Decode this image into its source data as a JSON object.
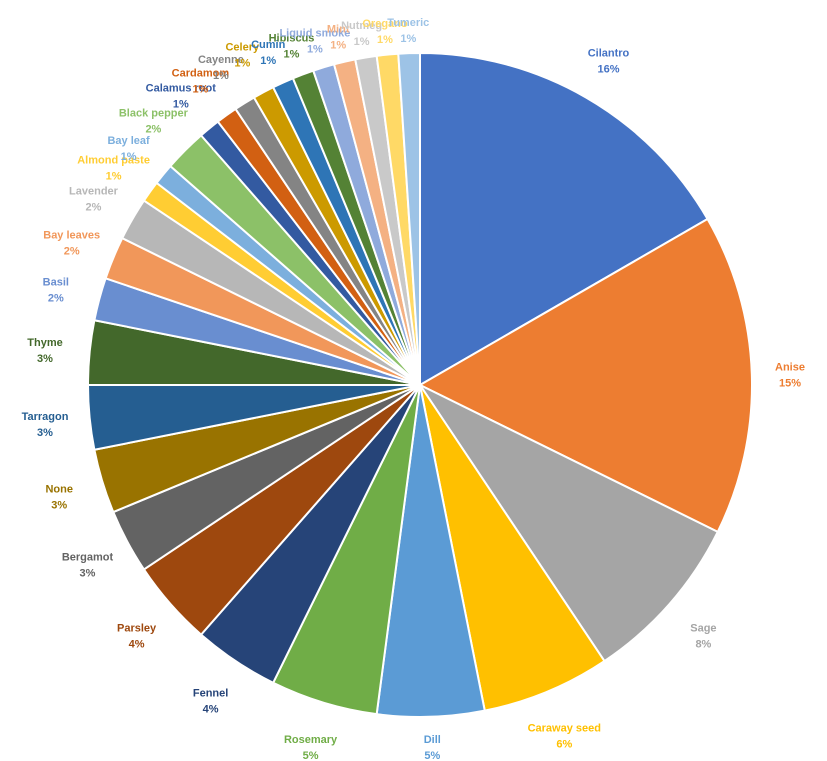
{
  "chart_data": {
    "type": "pie",
    "title": "",
    "start_angle_deg": 0,
    "direction": "clockwise",
    "legend": "none",
    "label_format": "name and percent",
    "slices": [
      {
        "label": "Cilantro",
        "value": 16,
        "display": "16%",
        "color": "#4472C4"
      },
      {
        "label": "Anise",
        "value": 15,
        "display": "15%",
        "color": "#ED7D31"
      },
      {
        "label": "Sage",
        "value": 8,
        "display": "8%",
        "color": "#A5A5A5"
      },
      {
        "label": "Caraway seed",
        "value": 6,
        "display": "6%",
        "color": "#FFC000"
      },
      {
        "label": "Dill",
        "value": 5,
        "display": "5%",
        "color": "#5B9BD5"
      },
      {
        "label": "Rosemary",
        "value": 5,
        "display": "5%",
        "color": "#70AD47"
      },
      {
        "label": "Fennel",
        "value": 4,
        "display": "4%",
        "color": "#264478"
      },
      {
        "label": "Parsley",
        "value": 4,
        "display": "4%",
        "color": "#9E480E"
      },
      {
        "label": "Bergamot",
        "value": 3,
        "display": "3%",
        "color": "#636363"
      },
      {
        "label": "None",
        "value": 3,
        "display": "3%",
        "color": "#997300"
      },
      {
        "label": "Tarragon",
        "value": 3,
        "display": "3%",
        "color": "#255E91"
      },
      {
        "label": "Thyme",
        "value": 3,
        "display": "3%",
        "color": "#43682B"
      },
      {
        "label": "Basil",
        "value": 2,
        "display": "2%",
        "color": "#698ED0"
      },
      {
        "label": "Bay leaves",
        "value": 2,
        "display": "2%",
        "color": "#F1975A"
      },
      {
        "label": "Lavender",
        "value": 2,
        "display": "2%",
        "color": "#B7B7B7"
      },
      {
        "label": "Almond paste",
        "value": 1,
        "display": "1%",
        "color": "#FFCD33"
      },
      {
        "label": "Bay leaf",
        "value": 1,
        "display": "1%",
        "color": "#7CAFDD"
      },
      {
        "label": "Black pepper",
        "value": 2,
        "display": "2%",
        "color": "#8CC168"
      },
      {
        "label": "Calamus root",
        "value": 1,
        "display": "1%",
        "color": "#335AA1"
      },
      {
        "label": "Cardamom",
        "value": 1,
        "display": "1%",
        "color": "#D26012"
      },
      {
        "label": "Cayenne",
        "value": 1,
        "display": "1%",
        "color": "#848484"
      },
      {
        "label": "Celery",
        "value": 1,
        "display": "1%",
        "color": "#CC9A00"
      },
      {
        "label": "Cumin",
        "value": 1,
        "display": "1%",
        "color": "#2E75B6"
      },
      {
        "label": "Hibiscus",
        "value": 1,
        "display": "1%",
        "color": "#548235"
      },
      {
        "label": "Liquid smoke",
        "value": 1,
        "display": "1%",
        "color": "#8FAADC"
      },
      {
        "label": "Mint",
        "value": 1,
        "display": "1%",
        "color": "#F4B183"
      },
      {
        "label": "Nutmeg",
        "value": 1,
        "display": "1%",
        "color": "#C9C9C9"
      },
      {
        "label": "Oregano",
        "value": 1,
        "display": "1%",
        "color": "#FFD966"
      },
      {
        "label": "Tumeric",
        "value": 1,
        "display": "1%",
        "color": "#9DC3E6"
      }
    ]
  }
}
